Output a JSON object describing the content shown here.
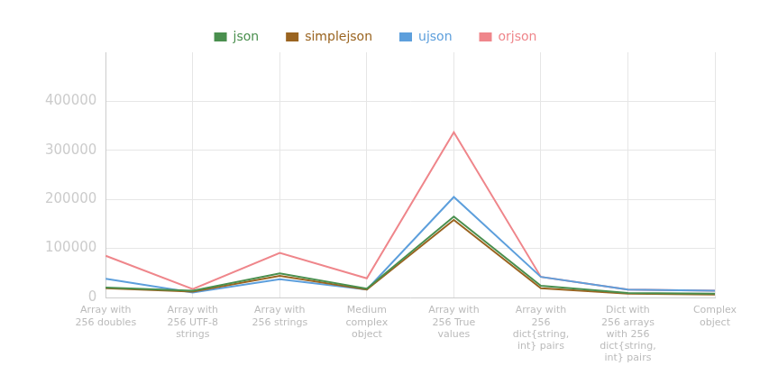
{
  "chart_data": {
    "type": "line",
    "categories": [
      "Array with 256 doubles",
      "Array with 256 UTF-8 strings",
      "Array with 256 strings",
      "Medium complex object",
      "Array with 256 True values",
      "Array with 256 dict{string, int} pairs",
      "Dict with 256 arrays with 256 dict{string, int} pairs",
      "Complex object"
    ],
    "series": [
      {
        "name": "json",
        "color": "#4a8f4e",
        "values": [
          20000,
          14000,
          49000,
          18000,
          165000,
          24000,
          9000,
          8000
        ]
      },
      {
        "name": "simplejson",
        "color": "#9a6420",
        "values": [
          19000,
          12000,
          44000,
          16000,
          158000,
          19000,
          8000,
          6000
        ]
      },
      {
        "name": "ujson",
        "color": "#5d9fdc",
        "values": [
          38000,
          10000,
          37000,
          16000,
          205000,
          42000,
          16000,
          14000
        ]
      },
      {
        "name": "orjson",
        "color": "#ef868b",
        "values": [
          85000,
          17000,
          91000,
          39000,
          337000,
          42000,
          16000,
          14000
        ]
      }
    ],
    "ylim": [
      0,
      500000
    ],
    "yticks": [
      0,
      100000,
      200000,
      300000,
      400000
    ],
    "grid": true,
    "legend": "top"
  }
}
